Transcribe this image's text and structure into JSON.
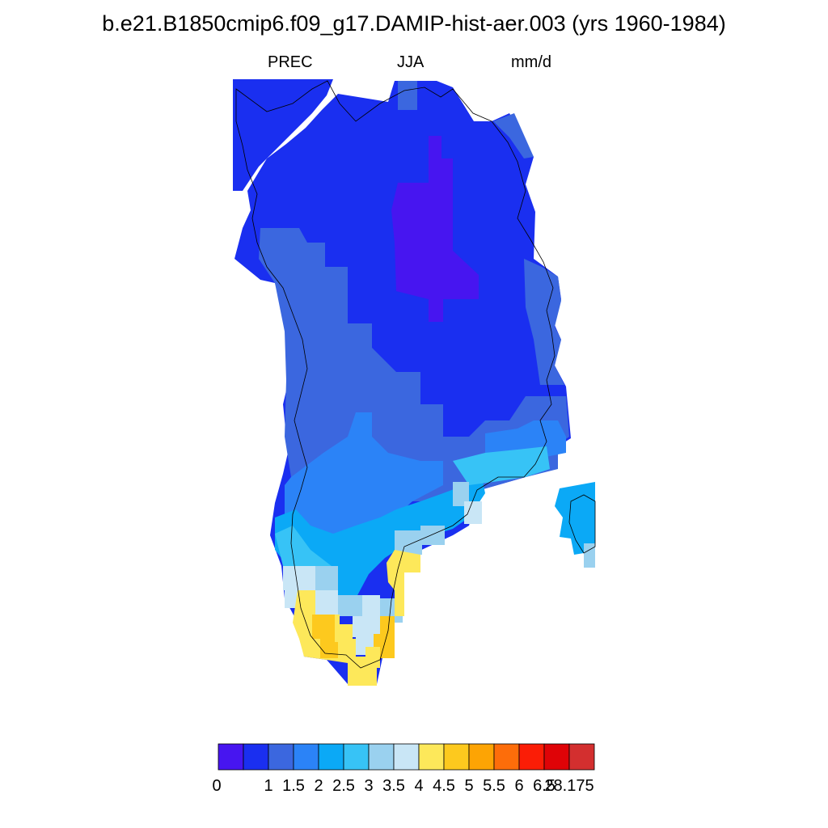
{
  "title": "b.e21.B1850cmip6.f09_g17.DAMIP-hist-aer.003 (yrs 1960-1984)",
  "subtitle": {
    "left": "PREC",
    "center": "JJA",
    "right": "mm/d"
  },
  "colorbar": {
    "colors": [
      "#4715f0",
      "#1a2ff0",
      "#3b67df",
      "#2b83f7",
      "#0ba9f6",
      "#37c3f6",
      "#9ad1ef",
      "#c9e6f6",
      "#fde85a",
      "#fdc91e",
      "#fda404",
      "#fd6d0a",
      "#fb1d06",
      "#df0307",
      "#d32f2f"
    ],
    "tick_labels": [
      "0",
      "1",
      "1.5",
      "2",
      "2.5",
      "3",
      "3.5",
      "4",
      "4.5",
      "5",
      "5.5",
      "6",
      "6.5",
      "28.175"
    ]
  },
  "map": {
    "region": "Greenland",
    "variable": "PREC",
    "season": "JJA",
    "units": "mm/d"
  }
}
